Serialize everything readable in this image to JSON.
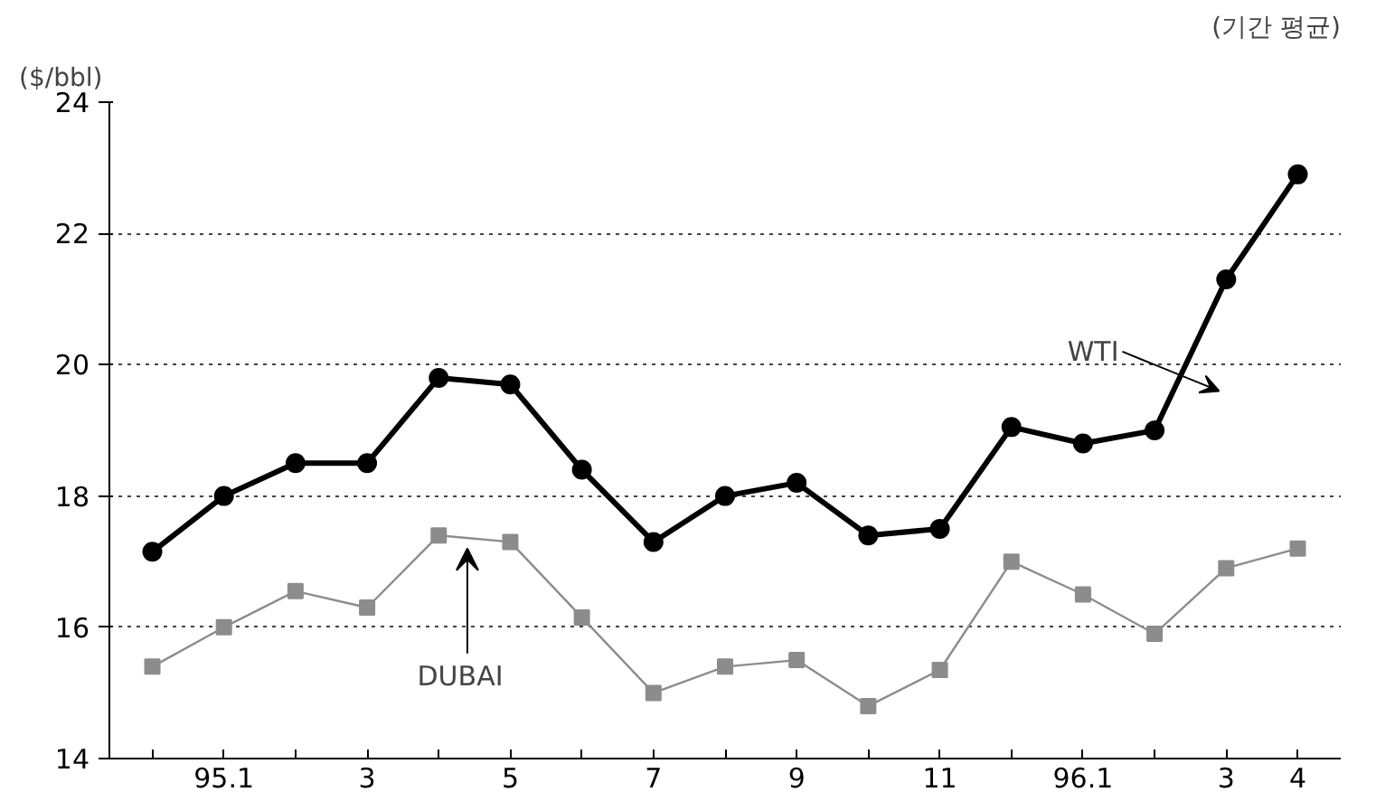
{
  "chart_data": {
    "type": "line",
    "ylabel": "($/bbl)",
    "annotations": [
      "(기간 평균)"
    ],
    "categories": [
      null,
      "95.1",
      null,
      "3",
      null,
      "5",
      null,
      "7",
      null,
      "9",
      null,
      "11",
      null,
      "96.1",
      null,
      "3",
      "4"
    ],
    "series": [
      {
        "name": "WTI",
        "color": "#000000",
        "marker": "circle",
        "values": [
          17.15,
          18.0,
          18.5,
          18.5,
          19.8,
          19.7,
          18.4,
          17.3,
          18.0,
          18.2,
          17.4,
          17.5,
          19.05,
          18.8,
          19.0,
          21.3,
          22.9
        ]
      },
      {
        "name": "DUBAI",
        "color": "#8c8c8c",
        "marker": "square",
        "values": [
          15.4,
          16.0,
          16.55,
          16.3,
          17.4,
          17.3,
          16.15,
          15.0,
          15.4,
          15.5,
          14.8,
          15.35,
          17.0,
          16.5,
          15.9,
          16.9,
          17.2
        ]
      }
    ],
    "ylim": [
      14,
      24
    ],
    "yticks": [
      14,
      16,
      18,
      20,
      22,
      24
    ],
    "grid": "y",
    "legend": false,
    "line_style": "solid"
  }
}
